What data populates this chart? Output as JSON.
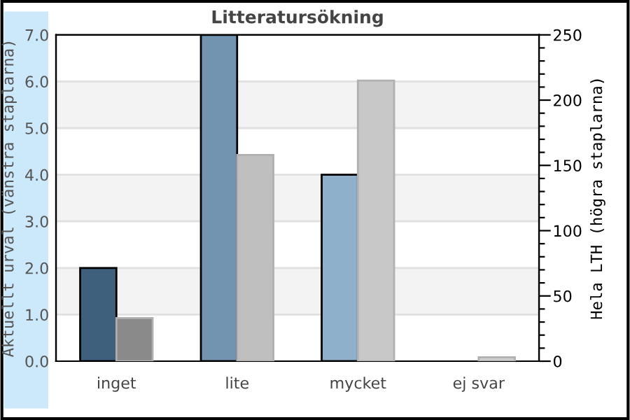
{
  "chart_data": {
    "type": "bar",
    "title": "Litteratursökning",
    "ylabel": "Aktuellt urval (vänstra staplarna)",
    "y2label": "Hela LTH (högra staplarna)",
    "categories": [
      "inget",
      "lite",
      "mycket",
      "ej svar"
    ],
    "series": [
      {
        "colors": [
          "#3f607d",
          "#7294b0",
          "#8fb0cb",
          "#8fb0cb"
        ],
        "values": [
          2,
          7,
          4,
          0
        ]
      },
      {
        "colors": [
          "#8a8a8a",
          "#bfbfbf",
          "#c8c8c8",
          "#d0d0d0"
        ],
        "values": [
          33,
          158,
          215,
          3
        ],
        "axis": "y2"
      }
    ],
    "ylim": [
      0,
      7
    ],
    "yticks": [
      {
        "value": 0,
        "label": "0.0"
      },
      {
        "value": 1,
        "label": "1.0"
      },
      {
        "value": 2,
        "label": "2.0"
      },
      {
        "value": 3,
        "label": "3.0"
      },
      {
        "value": 4,
        "label": "4.0"
      },
      {
        "value": 5,
        "label": "5.0"
      },
      {
        "value": 6,
        "label": "6.0"
      },
      {
        "value": 7,
        "label": "7.0"
      }
    ],
    "y2lim": [
      0,
      250
    ],
    "y2ticks": [
      0,
      {
        "value": 10,
        "label": null
      },
      {
        "value": 20,
        "label": null
      },
      {
        "value": 30,
        "label": null
      },
      {
        "value": 40,
        "label": null
      },
      50,
      {
        "value": 60,
        "label": null
      },
      {
        "value": 70,
        "label": null
      },
      {
        "value": 80,
        "label": null
      },
      {
        "value": 90,
        "label": null
      },
      100,
      {
        "value": 110,
        "label": null
      },
      {
        "value": 120,
        "label": null
      },
      {
        "value": 130,
        "label": null
      },
      {
        "value": 140,
        "label": null
      },
      150,
      {
        "value": 160,
        "label": null
      },
      {
        "value": 170,
        "label": null
      },
      {
        "value": 180,
        "label": null
      },
      {
        "value": 190,
        "label": null
      },
      200,
      {
        "value": 210,
        "label": null
      },
      {
        "value": 220,
        "label": null
      },
      {
        "value": 230,
        "label": null
      },
      {
        "value": 240,
        "label": null
      },
      250
    ],
    "bands": [
      {
        "axis": "y",
        "from": 1,
        "to": 2,
        "color": "#f3f3f3"
      },
      {
        "axis": "y",
        "from": 3,
        "to": 4,
        "color": "#f3f3f3"
      },
      {
        "axis": "y",
        "from": 5,
        "to": 6,
        "color": "#f3f3f3"
      }
    ],
    "grid": "y",
    "legend": false
  }
}
